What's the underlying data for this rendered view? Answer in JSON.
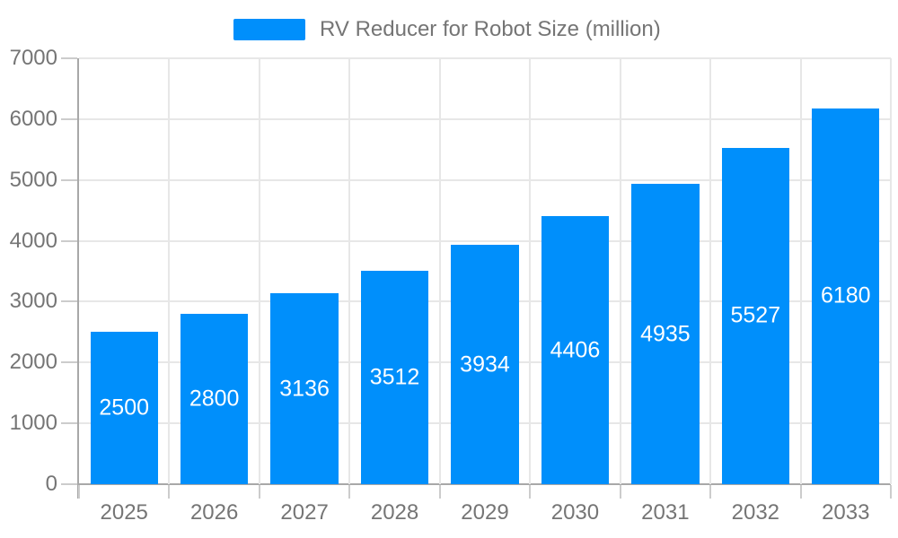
{
  "chart_data": {
    "type": "bar",
    "title": "RV Reducer for Robot Size (million)",
    "categories": [
      "2025",
      "2026",
      "2027",
      "2028",
      "2029",
      "2030",
      "2031",
      "2032",
      "2033"
    ],
    "series": [
      {
        "name": "RV Reducer for Robot Size (million)",
        "values": [
          2500,
          2800,
          3136,
          3512,
          3934,
          4406,
          4935,
          5527,
          6180
        ]
      }
    ],
    "xlabel": "",
    "ylabel": "",
    "ylim": [
      0,
      7000
    ],
    "y_ticks": [
      0,
      1000,
      2000,
      3000,
      4000,
      5000,
      6000,
      7000
    ],
    "grid": "both",
    "legend_position": "top",
    "bar_labels_inside": true
  },
  "colors": {
    "bar": "#008FFB",
    "grid": "#e7e7e7",
    "axis": "#a8a8a8",
    "tick": "#cccccc",
    "text": "#757575",
    "bar_label": "#ffffff",
    "background": "#ffffff"
  }
}
